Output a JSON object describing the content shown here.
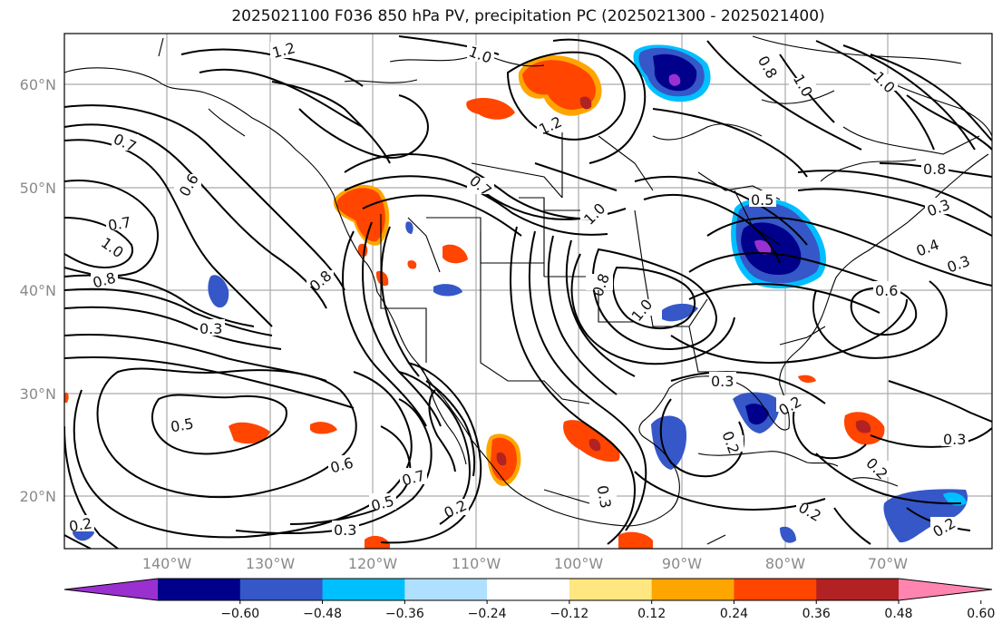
{
  "title": "2025021100 F036 850 hPa PV, precipitation PC (2025021300 - 2025021400)",
  "map": {
    "lat_labels": [
      "60°N",
      "50°N",
      "40°N",
      "30°N",
      "20°N"
    ],
    "lon_labels": [
      "140°W",
      "130°W",
      "120°W",
      "110°W",
      "100°W",
      "90°W",
      "80°W",
      "70°W"
    ],
    "contour_labels": [
      "1.2",
      "1.0",
      "1.2",
      "0.8",
      "1.0",
      "1.0",
      "0.7",
      "0.6",
      "0.7",
      "1.0",
      "0.8",
      "0.8",
      "0.7",
      "1.0",
      "0.8",
      "1.0",
      "0.5",
      "0.3",
      "0.4",
      "0.3",
      "0.6",
      "0.8",
      "0.3",
      "0.3",
      "0.2",
      "0.5",
      "0.6",
      "0.7",
      "0.5",
      "0.2",
      "0.3",
      "0.3",
      "0.2",
      "0.2",
      "0.3",
      "0.2",
      "0.2",
      "0.2"
    ],
    "land_color": "#ffffff",
    "grid": true
  },
  "colorbar": {
    "ticks": [
      "−0.60",
      "−0.48",
      "−0.36",
      "−0.24",
      "−0.12",
      "0.12",
      "0.24",
      "0.36",
      "0.48",
      "0.60"
    ],
    "colors": [
      "#9b30d0",
      "#00008b",
      "#3557c8",
      "#00bfff",
      "#b0e0ff",
      "#ffffff",
      "#ffe680",
      "#ffa500",
      "#ff4500",
      "#b22222",
      "#ff85b0"
    ]
  }
}
